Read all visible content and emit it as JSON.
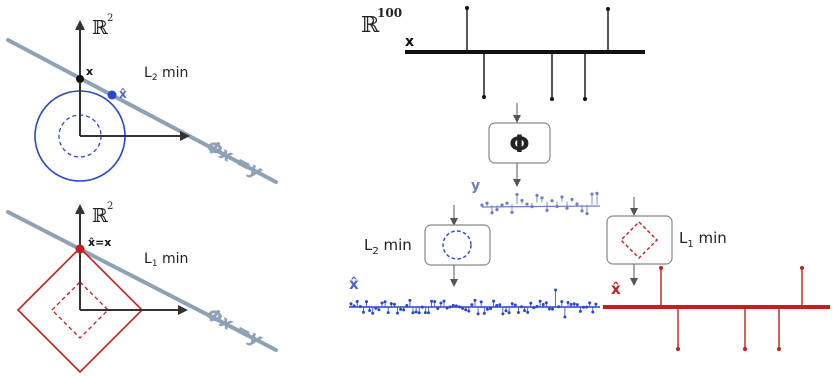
{
  "colors": {
    "black": "#222222",
    "line": "#8fa2b5",
    "blue": "#2a47c9",
    "lightblue": "#6d7fc4",
    "red": "#c0201f",
    "box": "#888888"
  },
  "top_panel": {
    "space_label": "ℝ",
    "space_exp": "2",
    "point_x": "x",
    "point_xhat": "x̂",
    "method": "L",
    "method_sub": "2",
    "method_suffix": " min",
    "constraint": "Φx =y"
  },
  "bottom_panel": {
    "space_label": "ℝ",
    "space_exp": "2",
    "point_label": "x̂=x",
    "method": "L",
    "method_sub": "1",
    "method_suffix": " min",
    "constraint": "Φx =y"
  },
  "right_panel": {
    "space_label": "ℝ",
    "space_exp": "100",
    "signal_x": "x",
    "operator": "Φ",
    "signal_y": "y",
    "l2_label": "L",
    "l2_sub": "2",
    "l2_suffix": " min",
    "l1_label": "L",
    "l1_sub": "1",
    "l1_suffix": " min",
    "xhat_l2": "x̂",
    "xhat_l1": "x̂"
  }
}
